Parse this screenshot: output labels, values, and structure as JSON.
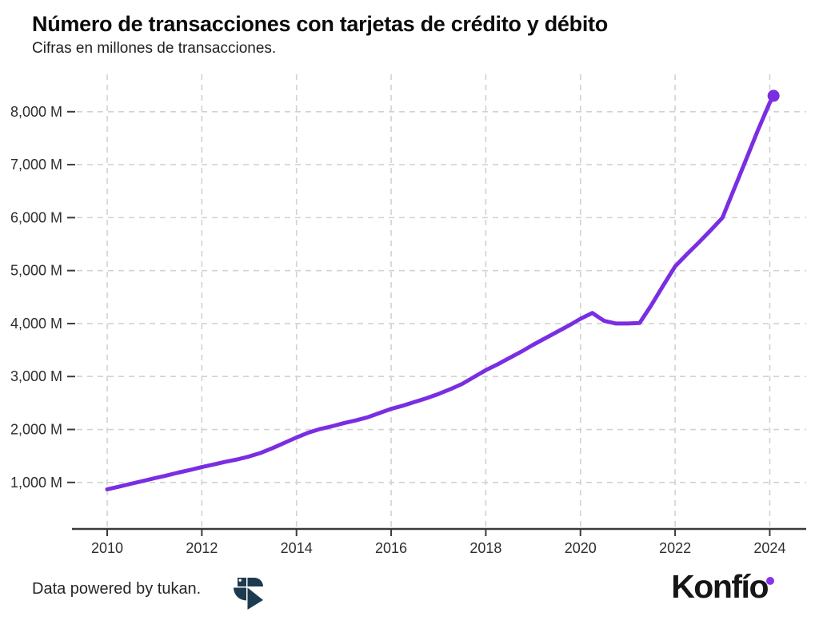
{
  "header": {},
  "footer": {
    "credit": "Data powered by tukan.",
    "brand": "Konfío"
  },
  "colors": {
    "line": "#7A2EE2",
    "grid": "#d2d2d2",
    "axis": "#3a3a3a",
    "tick_text": "#2e2e2e",
    "tukan_navy": "#1d3a4e",
    "konfio_black": "#161616",
    "konfio_dot": "#8833EE"
  },
  "chart_data": {
    "type": "line",
    "title": "Número de transacciones con tarjetas de crédito y débito",
    "subtitle": "Cifras en millones de transacciones.",
    "unit": "millones de transacciones",
    "grid": "dashed, both axes",
    "legend": "none",
    "x_ticks": [
      2010,
      2012,
      2014,
      2016,
      2018,
      2020,
      2022,
      2024
    ],
    "x_tick_labels": [
      "2010",
      "2012",
      "2014",
      "2016",
      "2018",
      "2020",
      "2022",
      "2024"
    ],
    "y_ticks": [
      1000,
      2000,
      3000,
      4000,
      5000,
      6000,
      7000,
      8000
    ],
    "y_tick_labels": [
      "1,000 M",
      "2,000 M",
      "3,000 M",
      "4,000 M",
      "5,000 M",
      "6,000 M",
      "7,000 M",
      "8,000 M"
    ],
    "x_range": [
      2009.29,
      2024.77
    ],
    "y_range": [
      122,
      8706
    ],
    "line_color": "#7A2EE2",
    "marker": {
      "type": "circle",
      "position": "last-point",
      "color": "#7A2EE2"
    },
    "series": [
      {
        "points": [
          [
            2010.0,
            870
          ],
          [
            2010.25,
            920
          ],
          [
            2010.5,
            975
          ],
          [
            2010.75,
            1025
          ],
          [
            2011.0,
            1080
          ],
          [
            2011.25,
            1130
          ],
          [
            2011.5,
            1185
          ],
          [
            2011.75,
            1235
          ],
          [
            2012.0,
            1290
          ],
          [
            2012.25,
            1340
          ],
          [
            2012.5,
            1390
          ],
          [
            2012.75,
            1435
          ],
          [
            2013.0,
            1490
          ],
          [
            2013.25,
            1560
          ],
          [
            2013.5,
            1650
          ],
          [
            2013.75,
            1750
          ],
          [
            2014.0,
            1850
          ],
          [
            2014.25,
            1940
          ],
          [
            2014.5,
            2010
          ],
          [
            2014.75,
            2060
          ],
          [
            2015.0,
            2120
          ],
          [
            2015.25,
            2170
          ],
          [
            2015.5,
            2230
          ],
          [
            2015.75,
            2310
          ],
          [
            2016.0,
            2390
          ],
          [
            2016.25,
            2450
          ],
          [
            2016.5,
            2520
          ],
          [
            2016.75,
            2590
          ],
          [
            2017.0,
            2670
          ],
          [
            2017.25,
            2760
          ],
          [
            2017.5,
            2860
          ],
          [
            2017.75,
            2990
          ],
          [
            2018.0,
            3120
          ],
          [
            2018.25,
            3230
          ],
          [
            2018.5,
            3350
          ],
          [
            2018.75,
            3470
          ],
          [
            2019.0,
            3600
          ],
          [
            2019.25,
            3720
          ],
          [
            2019.5,
            3840
          ],
          [
            2019.75,
            3960
          ],
          [
            2020.0,
            4090
          ],
          [
            2020.25,
            4200
          ],
          [
            2020.5,
            4050
          ],
          [
            2020.75,
            4000
          ],
          [
            2021.0,
            4000
          ],
          [
            2021.25,
            4010
          ],
          [
            2021.5,
            4350
          ],
          [
            2021.75,
            4720
          ],
          [
            2022.0,
            5080
          ],
          [
            2022.25,
            5310
          ],
          [
            2022.5,
            5530
          ],
          [
            2022.75,
            5760
          ],
          [
            2023.0,
            6000
          ],
          [
            2023.25,
            6550
          ],
          [
            2023.5,
            7100
          ],
          [
            2023.75,
            7650
          ],
          [
            2024.0,
            8170
          ],
          [
            2024.08,
            8300
          ]
        ]
      }
    ]
  }
}
